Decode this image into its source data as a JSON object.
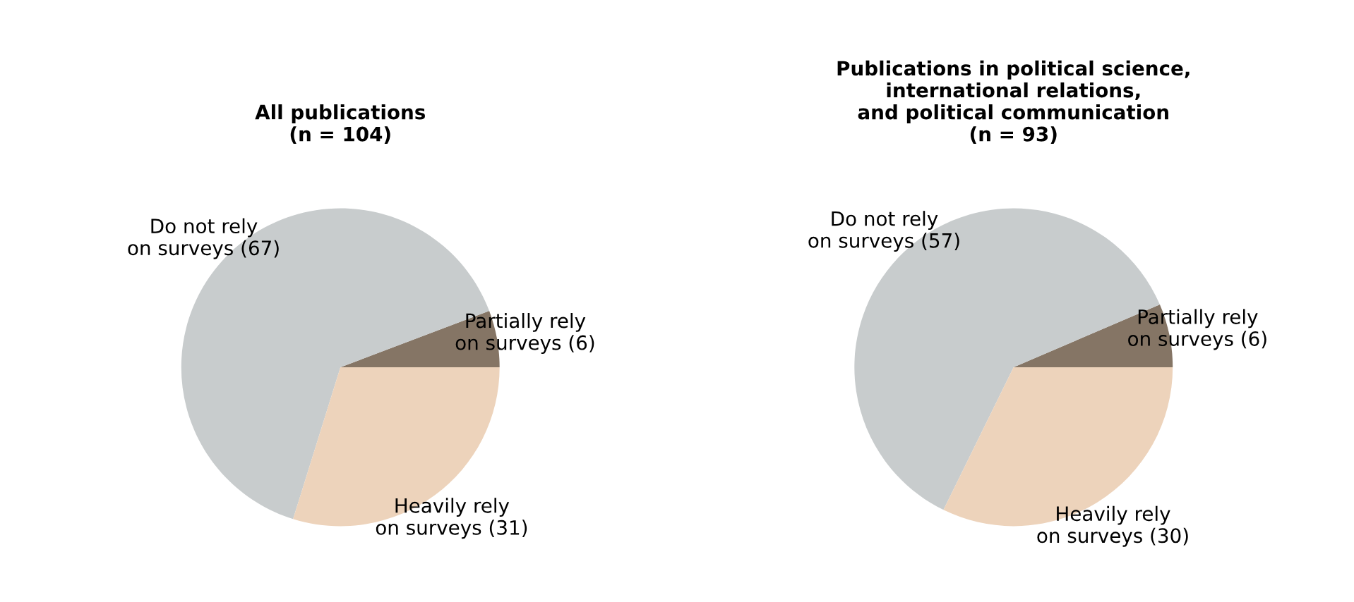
{
  "chart_data": [
    {
      "type": "pie",
      "title": "All publications\n(n = 104)",
      "categories": [
        "Partially rely\non surveys (6)",
        "Do not rely\non surveys (67)",
        "Heavily rely\non surveys (31)"
      ],
      "values": [
        6,
        67,
        31
      ],
      "colors": [
        "#857565",
        "#c8cccd",
        "#edd3bb"
      ]
    },
    {
      "type": "pie",
      "title": "Publications in political science,\ninternational relations,\nand political communication\n(n = 93)",
      "categories": [
        "Partially rely\non surveys (6)",
        "Do not rely\non surveys (57)",
        "Heavily rely\non surveys (30)"
      ],
      "values": [
        6,
        57,
        30
      ],
      "colors": [
        "#857565",
        "#c8cccd",
        "#edd3bb"
      ]
    }
  ]
}
